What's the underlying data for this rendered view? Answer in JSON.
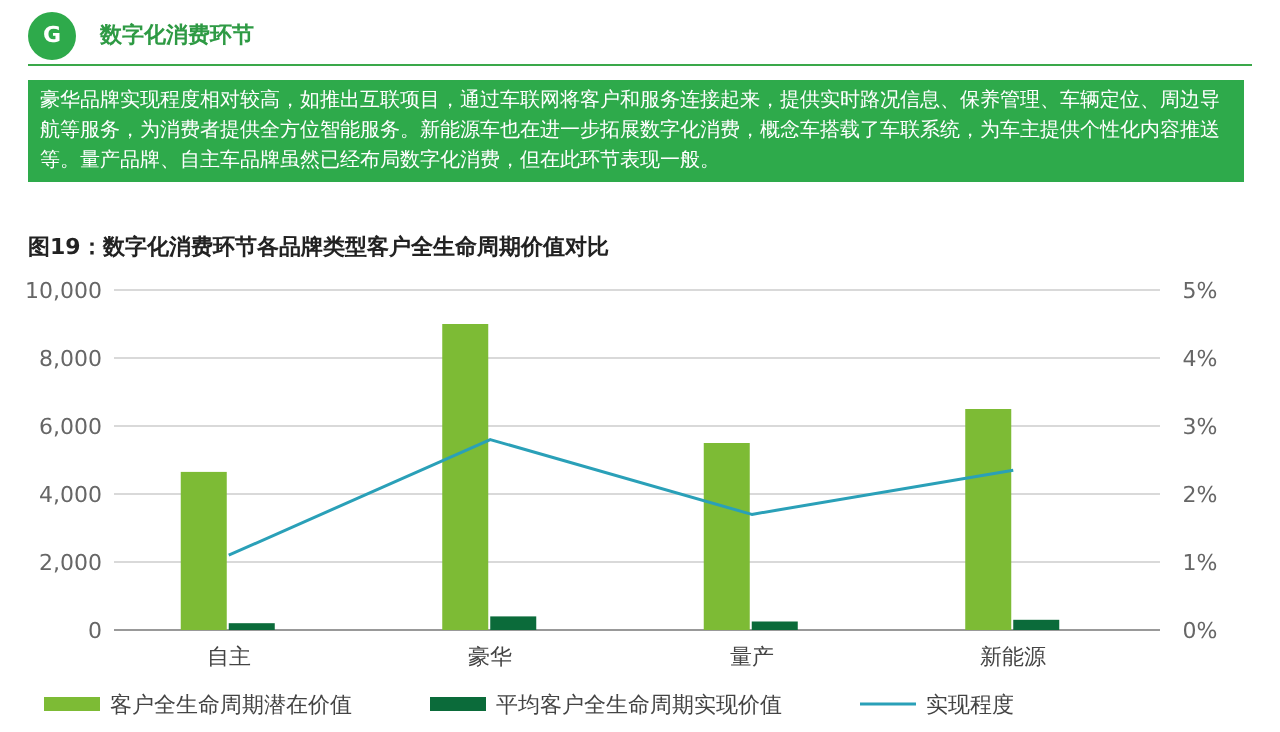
{
  "chart_data": {
    "type": "bar",
    "title": "图19：数字化消费环节各品牌类型客户全生命周期价值对比",
    "annotations": [
      "G",
      "数字化消费环节",
      "豪华品牌实现程度相对较高，如推出互联项目，通过车联网将客户和服务连接起来，提供实时路况信息、保养管理、车辆定位、周边导航等服务，为消费者提供全方位智能服务。新能源车也在进一步拓展数字化消费，概念车搭载了车联系统，为车主提供个性化内容推送等。量产品牌、自主车品牌虽然已经布局数字化消费，但在此环节表现一般。"
    ],
    "categories": [
      "自主",
      "豪华",
      "量产",
      "新能源"
    ],
    "series": [
      {
        "name": "客户全生命周期潜在价值",
        "color": "#7dbb35",
        "values": [
          4650,
          9000,
          5500,
          6500
        ]
      },
      {
        "name": "平均客户全生命周期实现价值",
        "color": "#0b6b3a",
        "values": [
          200,
          400,
          250,
          300
        ]
      },
      {
        "name": "实现程度",
        "type": "line",
        "axis": "y2",
        "color": "#2aa0b8",
        "values": [
          1.1,
          2.8,
          1.7,
          2.35
        ]
      }
    ],
    "ylim": [
      0,
      10000
    ],
    "yticks": [
      0,
      {
        "value": 2000,
        "label": "2,000"
      },
      {
        "value": 4000,
        "label": "4,000"
      },
      {
        "value": 6000,
        "label": "6,000"
      },
      {
        "value": 8000,
        "label": "8,000"
      },
      {
        "value": 10000,
        "label": "10,000"
      }
    ],
    "y2lim": [
      0,
      5
    ],
    "y2ticks": [
      {
        "value": 0,
        "label": "0%"
      },
      {
        "value": 1,
        "label": "1%"
      },
      {
        "value": 2,
        "label": "2%"
      },
      {
        "value": 3,
        "label": "3%"
      },
      {
        "value": 4,
        "label": "4%"
      },
      {
        "value": 5,
        "label": "5%"
      }
    ],
    "grid": "y",
    "legend": "bottom"
  }
}
